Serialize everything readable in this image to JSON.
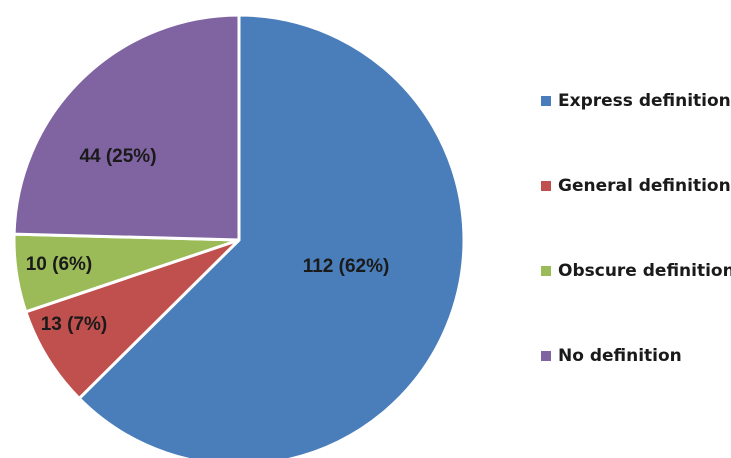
{
  "chart_data": {
    "type": "pie",
    "title": "",
    "start_angle_deg": 0,
    "direction": "clockwise",
    "legend_position": "right",
    "slices": [
      {
        "name": "Express definition",
        "value": 112,
        "label": "112 (62%)",
        "color": "#4a7ebb"
      },
      {
        "name": "General definition",
        "value": 13,
        "label": "13 (7%)",
        "color": "#c0504d"
      },
      {
        "name": "Obscure definition",
        "value": 10,
        "label": "10 (6%)",
        "color": "#9bbb59"
      },
      {
        "name": "No definition",
        "value": 44,
        "label": "44 (25%)",
        "color": "#8064a2"
      }
    ]
  }
}
